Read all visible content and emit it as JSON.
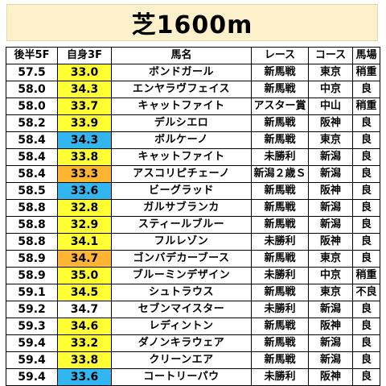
{
  "title": "芝1600m",
  "headers": [
    "後半5F",
    "自身3F",
    "馬名",
    "レース",
    "コース",
    "馬場"
  ],
  "colors": {
    "yellow": "#ffff33",
    "orange": "#ffb531",
    "blue": "#33b5f0",
    "none": "#ffffff"
  },
  "rows": [
    {
      "l5f": "57.5",
      "own3f": "33.0",
      "hl": "yellow",
      "horse": "ボンドガール",
      "race": "新馬戦",
      "course": "東京",
      "track": "稍重"
    },
    {
      "l5f": "58.0",
      "own3f": "34.3",
      "hl": "yellow",
      "horse": "エンヤラヴフェイス",
      "race": "新馬戦",
      "course": "中京",
      "track": "良"
    },
    {
      "l5f": "58.0",
      "own3f": "33.7",
      "hl": "yellow",
      "horse": "キャットファイト",
      "race": "アスター賞",
      "course": "中山",
      "track": "稍重"
    },
    {
      "l5f": "58.2",
      "own3f": "33.9",
      "hl": "yellow",
      "horse": "デルシエロ",
      "race": "新馬戦",
      "course": "阪神",
      "track": "良"
    },
    {
      "l5f": "58.4",
      "own3f": "34.3",
      "hl": "blue",
      "horse": "ボルケーノ",
      "race": "新馬戦",
      "course": "東京",
      "track": "良"
    },
    {
      "l5f": "58.4",
      "own3f": "33.8",
      "hl": "yellow",
      "horse": "キャットファイト",
      "race": "未勝利",
      "course": "新潟",
      "track": "良"
    },
    {
      "l5f": "58.4",
      "own3f": "33.3",
      "hl": "orange",
      "horse": "アスコリピチェーノ",
      "race": "新潟２歳Ｓ",
      "course": "新潟",
      "track": "良"
    },
    {
      "l5f": "58.5",
      "own3f": "33.6",
      "hl": "blue",
      "horse": "ビーグラッド",
      "race": "新馬戦",
      "course": "阪神",
      "track": "良"
    },
    {
      "l5f": "58.8",
      "own3f": "32.8",
      "hl": "yellow",
      "horse": "ガルサブランカ",
      "race": "新馬戦",
      "course": "新潟",
      "track": "良"
    },
    {
      "l5f": "58.8",
      "own3f": "32.9",
      "hl": "yellow",
      "horse": "スティールブルー",
      "race": "新馬戦",
      "course": "新潟",
      "track": "良"
    },
    {
      "l5f": "58.8",
      "own3f": "34.1",
      "hl": "yellow",
      "horse": "フルレゾン",
      "race": "未勝利",
      "course": "阪神",
      "track": "良"
    },
    {
      "l5f": "58.9",
      "own3f": "34.7",
      "hl": "orange",
      "horse": "ゴンバデカーブース",
      "race": "新馬戦",
      "course": "東京",
      "track": "良"
    },
    {
      "l5f": "58.9",
      "own3f": "35.0",
      "hl": "yellow",
      "horse": "ブルーミンデザイン",
      "race": "未勝利",
      "course": "中京",
      "track": "稍重"
    },
    {
      "l5f": "59.1",
      "own3f": "34.5",
      "hl": "yellow",
      "horse": "シュトラウス",
      "race": "新馬戦",
      "course": "東京",
      "track": "不良"
    },
    {
      "l5f": "59.2",
      "own3f": "34.7",
      "hl": "none",
      "horse": "セブンマイスター",
      "race": "未勝利",
      "course": "新潟",
      "track": "良"
    },
    {
      "l5f": "59.3",
      "own3f": "34.6",
      "hl": "yellow",
      "horse": "レディントン",
      "race": "新馬戦",
      "course": "阪神",
      "track": "良"
    },
    {
      "l5f": "59.4",
      "own3f": "33.2",
      "hl": "yellow",
      "horse": "ダノンキラウェア",
      "race": "新馬戦",
      "course": "新潟",
      "track": "良"
    },
    {
      "l5f": "59.4",
      "own3f": "33.8",
      "hl": "yellow",
      "horse": "クリーンエア",
      "race": "新馬戦",
      "course": "新潟",
      "track": "良"
    },
    {
      "l5f": "59.4",
      "own3f": "33.6",
      "hl": "blue",
      "horse": "コートリーパウ",
      "race": "未勝利",
      "course": "阪神",
      "track": "良"
    }
  ]
}
